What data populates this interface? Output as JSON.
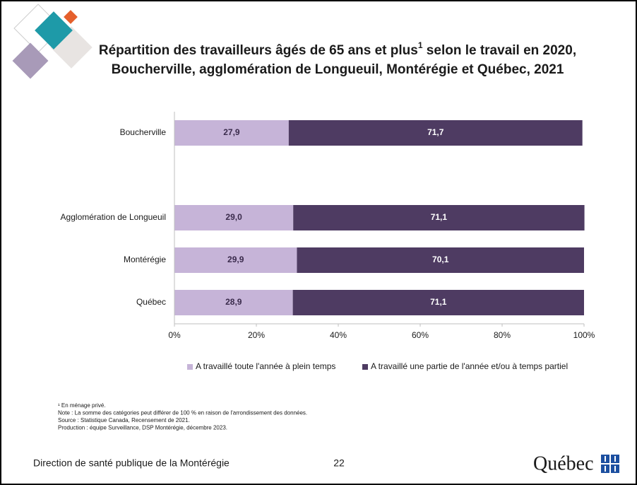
{
  "chart_data": {
    "type": "bar",
    "title": {
      "line1": "Répartition des travailleurs âgés de 65 ans et plus",
      "sup": "1",
      "line1_end": " selon le travail en 2020,",
      "line2": "Boucherville, agglomération de Longueuil, Montérégie et Québec, 2021"
    },
    "orientation": "horizontal",
    "stacked": true,
    "categories": [
      "Boucherville",
      null,
      "Agglomération de Longueuil",
      "Montérégie",
      "Québec"
    ],
    "series": [
      {
        "name": "A travaillé toute l'année à plein temps",
        "color": "#c6b4d8",
        "label_color": "#3a2b4c",
        "values": [
          27.9,
          null,
          29.0,
          29.9,
          28.9
        ],
        "value_labels": [
          "27,9",
          null,
          "29,0",
          "29,9",
          "28,9"
        ]
      },
      {
        "name": "A travaillé une partie de l'année et/ou à temps partiel",
        "color": "#4e3b62",
        "label_color": "#ffffff",
        "values": [
          71.7,
          null,
          71.1,
          70.1,
          71.1
        ],
        "value_labels": [
          "71,7",
          null,
          "71,1",
          "70,1",
          "71,1"
        ]
      }
    ],
    "xlim": [
      0,
      100
    ],
    "xticks": [
      {
        "value": 0,
        "label": "0%"
      },
      {
        "value": 20,
        "label": "20%"
      },
      {
        "value": 40,
        "label": "40%"
      },
      {
        "value": 60,
        "label": "60%"
      },
      {
        "value": 80,
        "label": "80%"
      },
      {
        "value": 100,
        "label": "100%"
      }
    ],
    "grid": false,
    "legend": "bottom"
  },
  "notes": [
    "¹ En ménage privé.",
    "Note : La somme des catégories peut différer de 100 % en raison de l'arrondissement des données.",
    "Source : Statistique Canada, Recensement de 2021.",
    "Production : équipe Surveillance, DSP Montérégie, décembre 2023."
  ],
  "footer": {
    "organization": "Direction de santé publique de la Montérégie",
    "page": "22",
    "logo": "Québec"
  }
}
